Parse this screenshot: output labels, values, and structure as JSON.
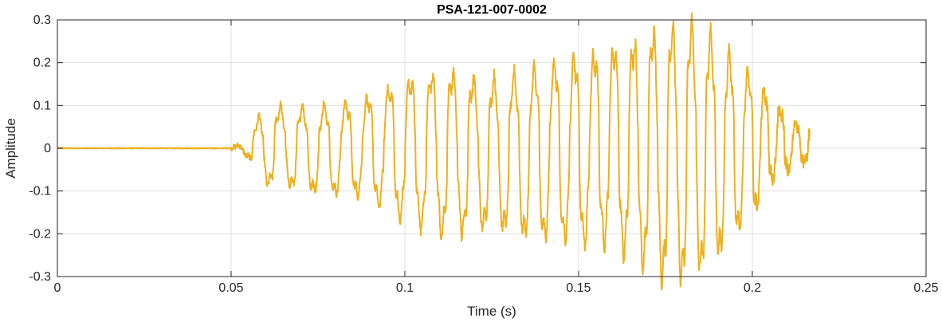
{
  "chart_data": {
    "type": "line",
    "title": "PSA-121-007-0002",
    "xlabel": "Time (s)",
    "ylabel": "Amplitude",
    "xlim": [
      0,
      0.25
    ],
    "ylim": [
      -0.3,
      0.3
    ],
    "xticks": [
      0,
      0.05,
      0.1,
      0.15,
      0.2,
      0.25
    ],
    "xtick_labels": [
      "0",
      "0.05",
      "0.1",
      "0.15",
      "0.2",
      "0.25"
    ],
    "yticks": [
      0.3,
      0.2,
      0.1,
      0,
      -0.1,
      -0.2,
      -0.3
    ],
    "ytick_labels": [
      "0.3",
      "0.2",
      "0.1",
      "0",
      "-0.1",
      "-0.2",
      "-0.3"
    ],
    "grid": true,
    "series": [
      {
        "color": "#EDB120",
        "x": [
          0,
          0.05,
          0.053,
          0.055,
          0.058,
          0.06,
          0.065,
          0.07,
          0.075,
          0.08,
          0.085,
          0.09,
          0.095,
          0.1,
          0.105,
          0.11,
          0.115,
          0.12,
          0.125,
          0.13,
          0.135,
          0.14,
          0.145,
          0.15,
          0.155,
          0.16,
          0.165,
          0.17,
          0.175,
          0.18,
          0.185,
          0.19,
          0.195,
          0.2,
          0.205,
          0.21,
          0.213,
          0.2165
        ],
        "y": [
          0,
          0,
          0.01,
          0.02,
          0.07,
          0.09,
          0.09,
          0.09,
          0.09,
          0.095,
          0.1,
          0.11,
          0.13,
          0.15,
          0.155,
          0.165,
          0.165,
          0.15,
          0.15,
          0.155,
          0.17,
          0.175,
          0.195,
          0.2,
          0.21,
          0.22,
          0.23,
          0.25,
          0.265,
          0.27,
          0.265,
          0.24,
          0.19,
          0.16,
          0.12,
          0.07,
          0.055,
          0.04
        ],
        "y_min": [
          0,
          0,
          -0.01,
          -0.02,
          -0.07,
          -0.08,
          -0.08,
          -0.09,
          -0.095,
          -0.1,
          -0.1,
          -0.11,
          -0.14,
          -0.16,
          -0.17,
          -0.19,
          -0.19,
          -0.175,
          -0.175,
          -0.18,
          -0.195,
          -0.2,
          -0.2,
          -0.21,
          -0.2,
          -0.21,
          -0.24,
          -0.27,
          -0.29,
          -0.29,
          -0.27,
          -0.24,
          -0.19,
          -0.15,
          -0.08,
          -0.05,
          -0.04,
          -0.03
        ]
      }
    ]
  }
}
